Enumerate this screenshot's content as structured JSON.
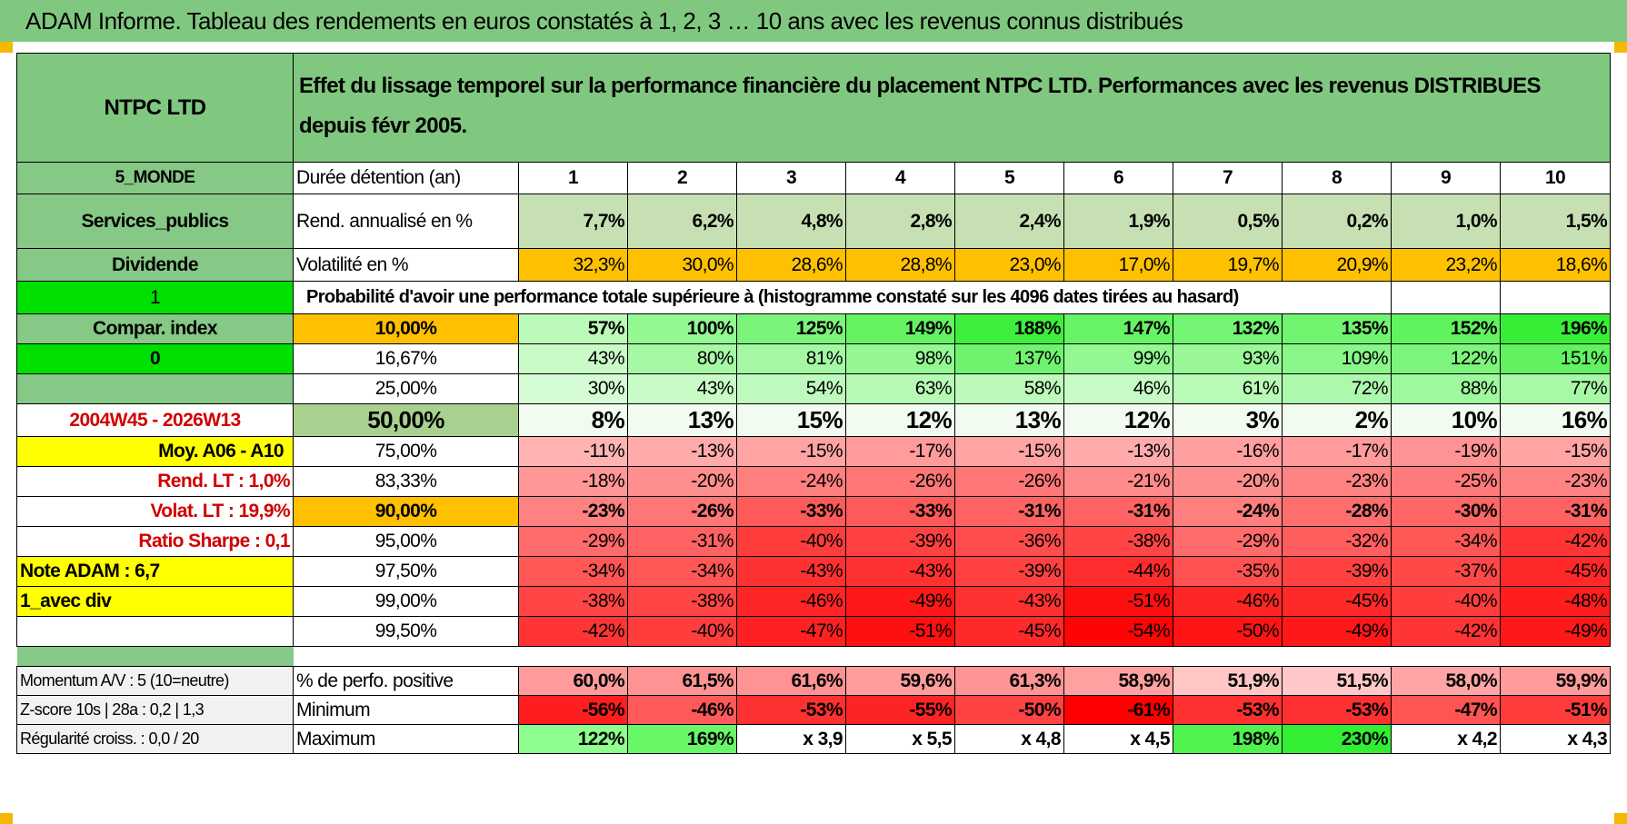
{
  "title": "ADAM Informe. Tableau des rendements en euros constatés à 1, 2, 3 … 10 ans avec les revenus connus distribués",
  "header": {
    "name": "NTPC LTD",
    "description": "Effet du lissage temporel sur la performance financière du placement NTPC LTD. Performances avec les revenus DISTRIBUES depuis févr 2005."
  },
  "left": {
    "region": "5_MONDE",
    "sector": "Services_publics",
    "type": "Dividende",
    "flag1": "1",
    "compar": "Compar. index",
    "flag0": "0",
    "period": "2004W45 - 2026W13",
    "moy": "Moy. A06 - A10",
    "rend_lt": "Rend. LT :    1,0%",
    "volat_lt": "Volat. LT :    19,9%",
    "sharpe": "Ratio Sharpe :    0,1",
    "note": "Note ADAM : 6,7",
    "div": "1_avec div",
    "momentum": "Momentum A/V : 5 (10=neutre)",
    "zscore": "Z-score 10s | 28a : 0,2 | 1,3",
    "regularite": "Régularité croiss. : 0,0 / 20"
  },
  "labels": {
    "duree": "Durée détention (an)",
    "rend": "Rend. annualisé en %",
    "vol": "Volatilité en %",
    "prob": "Probabilité d'avoir une performance totale supérieure à (histogramme constaté sur les 4096 dates tirées au hasard)",
    "posperf": "% de perfo. positive",
    "min": "Minimum",
    "max": "Maximum"
  },
  "years": [
    "1",
    "2",
    "3",
    "4",
    "5",
    "6",
    "7",
    "8",
    "9",
    "10"
  ],
  "rend": [
    "7,7%",
    "6,2%",
    "4,8%",
    "2,8%",
    "2,4%",
    "1,9%",
    "0,5%",
    "0,2%",
    "1,0%",
    "1,5%"
  ],
  "vol": [
    "32,3%",
    "30,0%",
    "28,6%",
    "28,8%",
    "23,0%",
    "17,0%",
    "19,7%",
    "20,9%",
    "23,2%",
    "18,6%"
  ],
  "quantiles": [
    {
      "q": "10,00%",
      "vals": [
        "57%",
        "100%",
        "125%",
        "149%",
        "188%",
        "147%",
        "132%",
        "135%",
        "152%",
        "196%"
      ]
    },
    {
      "q": "16,67%",
      "vals": [
        "43%",
        "80%",
        "81%",
        "98%",
        "137%",
        "99%",
        "93%",
        "109%",
        "122%",
        "151%"
      ]
    },
    {
      "q": "25,00%",
      "vals": [
        "30%",
        "43%",
        "54%",
        "63%",
        "58%",
        "46%",
        "61%",
        "72%",
        "88%",
        "77%"
      ]
    },
    {
      "q": "50,00%",
      "vals": [
        "8%",
        "13%",
        "15%",
        "12%",
        "13%",
        "12%",
        "3%",
        "2%",
        "10%",
        "16%"
      ]
    },
    {
      "q": "75,00%",
      "vals": [
        "-11%",
        "-13%",
        "-15%",
        "-17%",
        "-15%",
        "-13%",
        "-16%",
        "-17%",
        "-19%",
        "-15%"
      ]
    },
    {
      "q": "83,33%",
      "vals": [
        "-18%",
        "-20%",
        "-24%",
        "-26%",
        "-26%",
        "-21%",
        "-20%",
        "-23%",
        "-25%",
        "-23%"
      ]
    },
    {
      "q": "90,00%",
      "vals": [
        "-23%",
        "-26%",
        "-33%",
        "-33%",
        "-31%",
        "-31%",
        "-24%",
        "-28%",
        "-30%",
        "-31%"
      ]
    },
    {
      "q": "95,00%",
      "vals": [
        "-29%",
        "-31%",
        "-40%",
        "-39%",
        "-36%",
        "-38%",
        "-29%",
        "-32%",
        "-34%",
        "-42%"
      ]
    },
    {
      "q": "97,50%",
      "vals": [
        "-34%",
        "-34%",
        "-43%",
        "-43%",
        "-39%",
        "-44%",
        "-35%",
        "-39%",
        "-37%",
        "-45%"
      ]
    },
    {
      "q": "99,00%",
      "vals": [
        "-38%",
        "-38%",
        "-46%",
        "-49%",
        "-43%",
        "-51%",
        "-46%",
        "-45%",
        "-40%",
        "-48%"
      ]
    },
    {
      "q": "99,50%",
      "vals": [
        "-42%",
        "-40%",
        "-47%",
        "-51%",
        "-45%",
        "-54%",
        "-50%",
        "-49%",
        "-42%",
        "-49%"
      ]
    }
  ],
  "posperf": [
    "60,0%",
    "61,5%",
    "61,6%",
    "59,6%",
    "61,3%",
    "58,9%",
    "51,9%",
    "51,5%",
    "58,0%",
    "59,9%"
  ],
  "minimum": [
    "-56%",
    "-46%",
    "-53%",
    "-55%",
    "-50%",
    "-61%",
    "-53%",
    "-53%",
    "-47%",
    "-51%"
  ],
  "maximum": [
    "122%",
    "169%",
    "x 3,9",
    "x 5,5",
    "x 4,8",
    "x 4,5",
    "198%",
    "230%",
    "x 4,2",
    "x 4,3"
  ],
  "colors": {
    "header_green": "#80c880",
    "dark_green": "#86c886",
    "bright_green": "#00e000",
    "orange": "#ffc000",
    "yellow": "#ffff00",
    "rend_green": "#c6e0b4",
    "median_green": "#a9d08e"
  }
}
